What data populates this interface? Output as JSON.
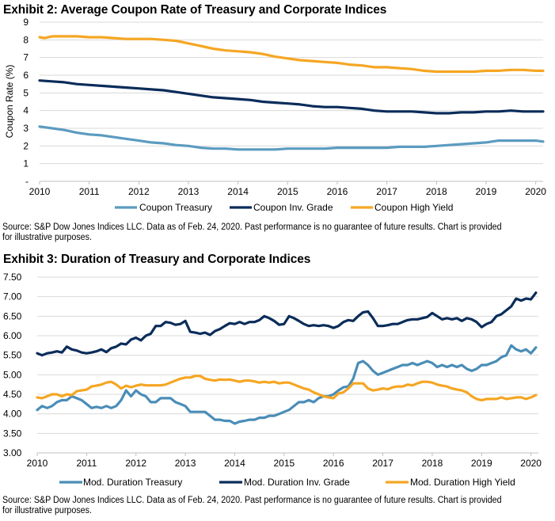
{
  "chart_data": [
    {
      "id": "exhibit2",
      "type": "line",
      "title": "Exhibit 2: Average Coupon Rate of Treasury and Corporate Indices",
      "xlabel": "",
      "ylabel": "Coupon Rate (%)",
      "xlim": [
        2010,
        2020.15
      ],
      "ylim": [
        0,
        9
      ],
      "y_ticks": [
        0,
        1,
        2,
        3,
        4,
        5,
        6,
        7,
        8,
        9
      ],
      "y_tick_labels": [
        "-",
        "1",
        "2",
        "3",
        "4",
        "5",
        "6",
        "7",
        "8",
        "9"
      ],
      "x_ticks": [
        2010,
        2011,
        2012,
        2013,
        2014,
        2015,
        2016,
        2017,
        2018,
        2019,
        2020
      ],
      "x_tick_labels": [
        "2010",
        "2011",
        "2012",
        "2013",
        "2014",
        "2015",
        "2016",
        "2017",
        "2018",
        "2019",
        "2020"
      ],
      "grid": true,
      "legend_position": "bottom",
      "series": [
        {
          "name": "Coupon Treasury",
          "color": "#5B9BC0",
          "x": [
            2010,
            2010.25,
            2010.5,
            2010.75,
            2011,
            2011.25,
            2011.5,
            2011.75,
            2012,
            2012.25,
            2012.5,
            2012.75,
            2013,
            2013.25,
            2013.5,
            2013.75,
            2014,
            2014.25,
            2014.5,
            2014.75,
            2015,
            2015.25,
            2015.5,
            2015.75,
            2016,
            2016.25,
            2016.5,
            2016.75,
            2017,
            2017.25,
            2017.5,
            2017.75,
            2018,
            2018.25,
            2018.5,
            2018.75,
            2019,
            2019.25,
            2019.5,
            2019.75,
            2020,
            2020.15
          ],
          "values": [
            3.1,
            3.0,
            2.9,
            2.75,
            2.65,
            2.6,
            2.5,
            2.4,
            2.3,
            2.2,
            2.15,
            2.05,
            2.0,
            1.9,
            1.85,
            1.85,
            1.8,
            1.8,
            1.8,
            1.8,
            1.85,
            1.85,
            1.85,
            1.85,
            1.9,
            1.9,
            1.9,
            1.9,
            1.9,
            1.95,
            1.95,
            1.95,
            2.0,
            2.05,
            2.1,
            2.15,
            2.2,
            2.3,
            2.3,
            2.3,
            2.3,
            2.25
          ]
        },
        {
          "name": "Coupon Inv. Grade",
          "color": "#0A2C5A",
          "x": [
            2010,
            2010.25,
            2010.5,
            2010.75,
            2011,
            2011.25,
            2011.5,
            2011.75,
            2012,
            2012.25,
            2012.5,
            2012.75,
            2013,
            2013.25,
            2013.5,
            2013.75,
            2014,
            2014.25,
            2014.5,
            2014.75,
            2015,
            2015.25,
            2015.5,
            2015.75,
            2016,
            2016.25,
            2016.5,
            2016.75,
            2017,
            2017.25,
            2017.5,
            2017.75,
            2018,
            2018.25,
            2018.5,
            2018.75,
            2019,
            2019.25,
            2019.5,
            2019.75,
            2020,
            2020.15
          ],
          "values": [
            5.7,
            5.65,
            5.6,
            5.5,
            5.45,
            5.4,
            5.35,
            5.3,
            5.25,
            5.2,
            5.15,
            5.05,
            4.95,
            4.85,
            4.75,
            4.7,
            4.65,
            4.6,
            4.5,
            4.45,
            4.4,
            4.35,
            4.25,
            4.2,
            4.2,
            4.15,
            4.1,
            4.0,
            3.95,
            3.95,
            3.95,
            3.9,
            3.85,
            3.85,
            3.9,
            3.9,
            3.95,
            3.95,
            4.0,
            3.95,
            3.95,
            3.95
          ]
        },
        {
          "name": "Coupon High Yield",
          "color": "#F5A623",
          "x": [
            2010,
            2010.1,
            2010.25,
            2010.5,
            2010.75,
            2011,
            2011.25,
            2011.5,
            2011.75,
            2012,
            2012.25,
            2012.5,
            2012.75,
            2013,
            2013.25,
            2013.5,
            2013.75,
            2014,
            2014.25,
            2014.5,
            2014.75,
            2015,
            2015.25,
            2015.5,
            2015.75,
            2016,
            2016.25,
            2016.5,
            2016.75,
            2017,
            2017.25,
            2017.5,
            2017.75,
            2018,
            2018.25,
            2018.5,
            2018.75,
            2019,
            2019.25,
            2019.5,
            2019.75,
            2020,
            2020.15
          ],
          "values": [
            8.15,
            8.1,
            8.2,
            8.2,
            8.2,
            8.15,
            8.15,
            8.1,
            8.05,
            8.05,
            8.05,
            8.0,
            7.95,
            7.8,
            7.65,
            7.5,
            7.4,
            7.35,
            7.3,
            7.2,
            7.05,
            6.95,
            6.85,
            6.8,
            6.75,
            6.7,
            6.6,
            6.55,
            6.45,
            6.45,
            6.4,
            6.35,
            6.25,
            6.2,
            6.2,
            6.2,
            6.2,
            6.25,
            6.25,
            6.3,
            6.3,
            6.25,
            6.25
          ]
        }
      ],
      "source": "Source: S&P Dow Jones Indices LLC. Data as of Feb. 24, 2020. Past performance is no guarantee of future results. Chart is provided for illustrative purposes."
    },
    {
      "id": "exhibit3",
      "type": "line",
      "title": "Exhibit 3: Duration of Treasury and Corporate Indices",
      "xlabel": "",
      "ylabel": "",
      "xlim": [
        2010,
        2020.15
      ],
      "ylim": [
        3.0,
        7.5
      ],
      "y_ticks": [
        3.0,
        3.5,
        4.0,
        4.5,
        5.0,
        5.5,
        6.0,
        6.5,
        7.0,
        7.5
      ],
      "y_tick_labels": [
        "3.00",
        "3.50",
        "4.00",
        "4.50",
        "5.00",
        "5.50",
        "6.00",
        "6.50",
        "7.00",
        "7.50"
      ],
      "x_ticks": [
        2010,
        2011,
        2012,
        2013,
        2014,
        2015,
        2016,
        2017,
        2018,
        2019,
        2020
      ],
      "x_tick_labels": [
        "2010",
        "2011",
        "2012",
        "2013",
        "2014",
        "2015",
        "2016",
        "2017",
        "2018",
        "2019",
        "2020"
      ],
      "grid": true,
      "legend_position": "bottom",
      "series": [
        {
          "name": "Mod. Duration Treasury",
          "color": "#4A8DB7",
          "x": [
            2010,
            2010.1,
            2010.2,
            2010.3,
            2010.4,
            2010.5,
            2010.6,
            2010.7,
            2010.8,
            2010.9,
            2011,
            2011.1,
            2011.2,
            2011.3,
            2011.4,
            2011.5,
            2011.6,
            2011.7,
            2011.8,
            2011.9,
            2012,
            2012.1,
            2012.2,
            2012.3,
            2012.4,
            2012.5,
            2012.6,
            2012.7,
            2012.8,
            2012.9,
            2013,
            2013.1,
            2013.2,
            2013.3,
            2013.4,
            2013.5,
            2013.6,
            2013.7,
            2013.8,
            2013.9,
            2014,
            2014.1,
            2014.2,
            2014.3,
            2014.4,
            2014.5,
            2014.6,
            2014.7,
            2014.8,
            2014.9,
            2015,
            2015.1,
            2015.2,
            2015.3,
            2015.4,
            2015.5,
            2015.6,
            2015.7,
            2015.8,
            2015.9,
            2016,
            2016.1,
            2016.2,
            2016.3,
            2016.4,
            2016.5,
            2016.6,
            2016.7,
            2016.8,
            2016.9,
            2017,
            2017.1,
            2017.2,
            2017.3,
            2017.4,
            2017.5,
            2017.6,
            2017.7,
            2017.8,
            2017.9,
            2018,
            2018.1,
            2018.2,
            2018.3,
            2018.4,
            2018.5,
            2018.6,
            2018.7,
            2018.8,
            2018.9,
            2019,
            2019.1,
            2019.2,
            2019.3,
            2019.4,
            2019.5,
            2019.6,
            2019.7,
            2019.8,
            2019.9,
            2020,
            2020.1
          ],
          "values": [
            4.1,
            4.2,
            4.15,
            4.2,
            4.3,
            4.35,
            4.35,
            4.45,
            4.4,
            4.35,
            4.25,
            4.15,
            4.18,
            4.15,
            4.2,
            4.15,
            4.2,
            4.35,
            4.6,
            4.45,
            4.6,
            4.5,
            4.45,
            4.3,
            4.3,
            4.4,
            4.4,
            4.4,
            4.3,
            4.25,
            4.2,
            4.05,
            4.05,
            4.05,
            4.05,
            3.95,
            3.85,
            3.85,
            3.82,
            3.82,
            3.75,
            3.8,
            3.82,
            3.85,
            3.85,
            3.9,
            3.9,
            3.95,
            3.95,
            4.0,
            4.05,
            4.1,
            4.2,
            4.3,
            4.3,
            4.35,
            4.3,
            4.4,
            4.45,
            4.45,
            4.5,
            4.6,
            4.68,
            4.7,
            4.9,
            5.3,
            5.35,
            5.25,
            5.1,
            5.0,
            5.05,
            5.1,
            5.15,
            5.2,
            5.25,
            5.25,
            5.3,
            5.25,
            5.3,
            5.35,
            5.3,
            5.2,
            5.25,
            5.2,
            5.25,
            5.2,
            5.25,
            5.15,
            5.1,
            5.15,
            5.25,
            5.25,
            5.3,
            5.35,
            5.45,
            5.5,
            5.75,
            5.65,
            5.6,
            5.65,
            5.55,
            5.7
          ]
        },
        {
          "name": "Mod. Duration Inv. Grade",
          "color": "#0A2C5A",
          "x": [
            2010,
            2010.1,
            2010.2,
            2010.3,
            2010.4,
            2010.5,
            2010.6,
            2010.7,
            2010.8,
            2010.9,
            2011,
            2011.1,
            2011.2,
            2011.3,
            2011.4,
            2011.5,
            2011.6,
            2011.7,
            2011.8,
            2011.9,
            2012,
            2012.1,
            2012.2,
            2012.3,
            2012.4,
            2012.5,
            2012.6,
            2012.7,
            2012.8,
            2012.9,
            2013,
            2013.1,
            2013.2,
            2013.3,
            2013.4,
            2013.5,
            2013.6,
            2013.7,
            2013.8,
            2013.9,
            2014,
            2014.1,
            2014.2,
            2014.3,
            2014.4,
            2014.5,
            2014.6,
            2014.7,
            2014.8,
            2014.9,
            2015,
            2015.1,
            2015.2,
            2015.3,
            2015.4,
            2015.5,
            2015.6,
            2015.7,
            2015.8,
            2015.9,
            2016,
            2016.1,
            2016.2,
            2016.3,
            2016.4,
            2016.5,
            2016.6,
            2016.7,
            2016.8,
            2016.9,
            2017,
            2017.1,
            2017.2,
            2017.3,
            2017.4,
            2017.5,
            2017.6,
            2017.7,
            2017.8,
            2017.9,
            2018,
            2018.1,
            2018.2,
            2018.3,
            2018.4,
            2018.5,
            2018.6,
            2018.7,
            2018.8,
            2018.9,
            2019,
            2019.1,
            2019.2,
            2019.3,
            2019.4,
            2019.5,
            2019.6,
            2019.7,
            2019.8,
            2019.9,
            2020,
            2020.1
          ],
          "values": [
            5.55,
            5.5,
            5.55,
            5.57,
            5.6,
            5.57,
            5.72,
            5.65,
            5.62,
            5.57,
            5.55,
            5.57,
            5.6,
            5.65,
            5.58,
            5.68,
            5.72,
            5.8,
            5.78,
            5.9,
            5.95,
            5.88,
            6.0,
            6.05,
            6.25,
            6.25,
            6.35,
            6.33,
            6.28,
            6.3,
            6.38,
            6.1,
            6.08,
            6.05,
            6.08,
            6.02,
            6.12,
            6.17,
            6.25,
            6.32,
            6.3,
            6.35,
            6.3,
            6.35,
            6.35,
            6.4,
            6.5,
            6.45,
            6.38,
            6.28,
            6.3,
            6.5,
            6.45,
            6.38,
            6.3,
            6.25,
            6.27,
            6.25,
            6.27,
            6.25,
            6.2,
            6.25,
            6.35,
            6.4,
            6.38,
            6.5,
            6.6,
            6.62,
            6.45,
            6.25,
            6.25,
            6.27,
            6.3,
            6.3,
            6.35,
            6.4,
            6.42,
            6.42,
            6.45,
            6.48,
            6.58,
            6.5,
            6.42,
            6.45,
            6.42,
            6.45,
            6.38,
            6.45,
            6.42,
            6.35,
            6.22,
            6.3,
            6.35,
            6.5,
            6.55,
            6.65,
            6.75,
            6.95,
            6.9,
            6.95,
            6.93,
            7.1
          ]
        },
        {
          "name": "Mod. Duration High Yield",
          "color": "#F5A623",
          "x": [
            2010,
            2010.1,
            2010.2,
            2010.3,
            2010.4,
            2010.5,
            2010.6,
            2010.7,
            2010.8,
            2010.9,
            2011,
            2011.1,
            2011.2,
            2011.3,
            2011.4,
            2011.5,
            2011.6,
            2011.7,
            2011.8,
            2011.9,
            2012,
            2012.1,
            2012.2,
            2012.3,
            2012.4,
            2012.5,
            2012.6,
            2012.7,
            2012.8,
            2012.9,
            2013,
            2013.1,
            2013.2,
            2013.3,
            2013.4,
            2013.5,
            2013.6,
            2013.7,
            2013.8,
            2013.9,
            2014,
            2014.1,
            2014.2,
            2014.3,
            2014.4,
            2014.5,
            2014.6,
            2014.7,
            2014.8,
            2014.9,
            2015,
            2015.1,
            2015.2,
            2015.3,
            2015.4,
            2015.5,
            2015.6,
            2015.7,
            2015.8,
            2015.9,
            2016,
            2016.1,
            2016.2,
            2016.3,
            2016.4,
            2016.5,
            2016.6,
            2016.7,
            2016.8,
            2016.9,
            2017,
            2017.1,
            2017.2,
            2017.3,
            2017.4,
            2017.5,
            2017.6,
            2017.7,
            2017.8,
            2017.9,
            2018,
            2018.1,
            2018.2,
            2018.3,
            2018.4,
            2018.5,
            2018.6,
            2018.7,
            2018.8,
            2018.9,
            2019,
            2019.1,
            2019.2,
            2019.3,
            2019.4,
            2019.5,
            2019.6,
            2019.7,
            2019.8,
            2019.9,
            2020,
            2020.1
          ],
          "values": [
            4.42,
            4.4,
            4.45,
            4.5,
            4.5,
            4.45,
            4.5,
            4.48,
            4.58,
            4.6,
            4.62,
            4.7,
            4.72,
            4.75,
            4.8,
            4.82,
            4.75,
            4.65,
            4.72,
            4.68,
            4.72,
            4.75,
            4.73,
            4.73,
            4.73,
            4.73,
            4.75,
            4.8,
            4.85,
            4.9,
            4.93,
            4.93,
            4.97,
            4.97,
            4.9,
            4.87,
            4.85,
            4.88,
            4.87,
            4.88,
            4.85,
            4.82,
            4.85,
            4.85,
            4.83,
            4.8,
            4.82,
            4.8,
            4.82,
            4.78,
            4.8,
            4.8,
            4.75,
            4.7,
            4.65,
            4.62,
            4.55,
            4.5,
            4.45,
            4.42,
            4.4,
            4.52,
            4.55,
            4.65,
            4.78,
            4.78,
            4.78,
            4.65,
            4.6,
            4.62,
            4.65,
            4.63,
            4.68,
            4.7,
            4.7,
            4.75,
            4.73,
            4.78,
            4.82,
            4.82,
            4.8,
            4.75,
            4.72,
            4.7,
            4.65,
            4.62,
            4.6,
            4.55,
            4.45,
            4.38,
            4.35,
            4.38,
            4.38,
            4.38,
            4.42,
            4.38,
            4.4,
            4.42,
            4.42,
            4.38,
            4.42,
            4.48
          ]
        }
      ],
      "source": "Source: S&P Dow Jones Indices LLC. Data as of Feb. 24, 2020. Past performance is no guarantee of future results. Chart is provided for illustrative purposes."
    }
  ],
  "colors": {
    "grid": "#D9D9D9",
    "axis": "#BFBFBF"
  }
}
